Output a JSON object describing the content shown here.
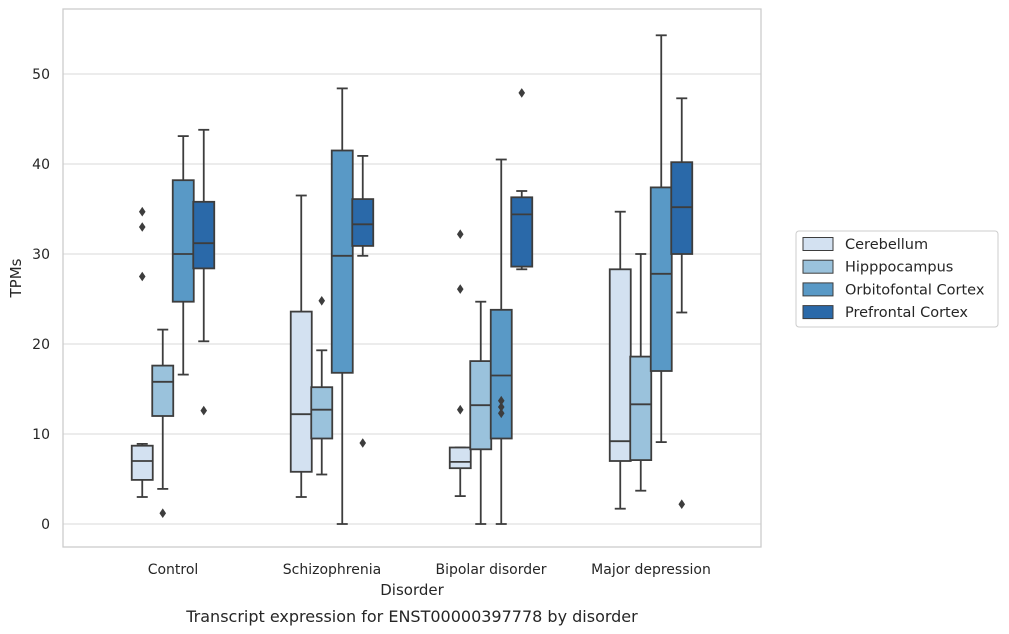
{
  "chart_data": {
    "type": "boxplot",
    "title": "",
    "caption": "Transcript expression for ENST00000397778 by disorder",
    "xlabel": "Disorder",
    "ylabel": "TPMs",
    "ylim": [
      -2.5,
      57
    ],
    "yticks": [
      0,
      10,
      20,
      30,
      40,
      50
    ],
    "ytick_labels": [
      "0",
      "10",
      "20",
      "30",
      "40",
      "50"
    ],
    "grid": "horizontal",
    "legend_placement": "right",
    "categories": [
      "Control",
      "Schizophrenia",
      "Bipolar disorder",
      "Major depression"
    ],
    "series": [
      {
        "name": "Cerebellum",
        "color": "#d3e1f1",
        "boxes": [
          {
            "whislo": 3.0,
            "q1": 4.9,
            "med": 7.0,
            "q3": 8.7,
            "whishi": 8.9,
            "fliers": [
              27.5,
              33.0,
              34.7
            ]
          },
          {
            "whislo": 3.0,
            "q1": 5.8,
            "med": 12.2,
            "q3": 23.6,
            "whishi": 36.5,
            "fliers": []
          },
          {
            "whislo": 3.1,
            "q1": 6.2,
            "med": 6.9,
            "q3": 8.5,
            "whishi": 8.5,
            "fliers": [
              12.7,
              26.1,
              32.2
            ]
          },
          {
            "whislo": 1.7,
            "q1": 7.0,
            "med": 9.2,
            "q3": 28.3,
            "whishi": 34.7,
            "fliers": []
          }
        ]
      },
      {
        "name": "Hipppocampus",
        "color": "#9ac2dc",
        "boxes": [
          {
            "whislo": 3.9,
            "q1": 12.0,
            "med": 15.8,
            "q3": 17.6,
            "whishi": 21.6,
            "fliers": [
              1.2
            ]
          },
          {
            "whislo": 5.5,
            "q1": 9.5,
            "med": 12.7,
            "q3": 15.2,
            "whishi": 19.3,
            "fliers": [
              24.8
            ]
          },
          {
            "whislo": 0.0,
            "q1": 8.3,
            "med": 13.2,
            "q3": 18.1,
            "whishi": 24.7,
            "fliers": []
          },
          {
            "whislo": 3.7,
            "q1": 7.1,
            "med": 13.3,
            "q3": 18.6,
            "whishi": 30.0,
            "fliers": []
          }
        ]
      },
      {
        "name": "Orbitofontal Cortex",
        "color": "#5999c6",
        "boxes": [
          {
            "whislo": 16.6,
            "q1": 24.7,
            "med": 30.0,
            "q3": 38.2,
            "whishi": 43.1,
            "fliers": []
          },
          {
            "whislo": 0.0,
            "q1": 16.8,
            "med": 29.8,
            "q3": 41.5,
            "whishi": 48.4,
            "fliers": []
          },
          {
            "whislo": 0.0,
            "q1": 9.5,
            "med": 16.5,
            "q3": 23.8,
            "whishi": 40.5,
            "fliers": [
              12.3,
              13.0,
              13.7
            ]
          },
          {
            "whislo": 9.1,
            "q1": 17.0,
            "med": 27.8,
            "q3": 37.4,
            "whishi": 54.3,
            "fliers": []
          }
        ]
      },
      {
        "name": "Prefrontal Cortex",
        "color": "#2a69a9",
        "boxes": [
          {
            "whislo": 20.3,
            "q1": 28.4,
            "med": 31.2,
            "q3": 35.8,
            "whishi": 43.8,
            "fliers": [
              12.6
            ]
          },
          {
            "whislo": 29.8,
            "q1": 30.9,
            "med": 33.3,
            "q3": 36.1,
            "whishi": 40.9,
            "fliers": [
              9.0
            ]
          },
          {
            "whislo": 28.3,
            "q1": 28.6,
            "med": 34.4,
            "q3": 36.3,
            "whishi": 37.0,
            "fliers": [
              47.9
            ]
          },
          {
            "whislo": 23.5,
            "q1": 30.0,
            "med": 35.2,
            "q3": 40.2,
            "whishi": 47.3,
            "fliers": [
              2.2
            ]
          }
        ]
      }
    ]
  }
}
